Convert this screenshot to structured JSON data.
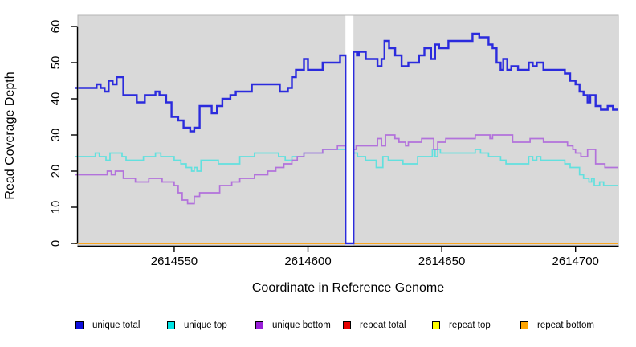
{
  "figure": {
    "xlabel": "Coordinate in Reference Genome",
    "ylabel": "Read Coverage Depth"
  },
  "legend": {
    "position": "bottom",
    "items": [
      {
        "label": "unique total",
        "color": "#0f0fdc"
      },
      {
        "label": "unique top",
        "color": "#00e5e5"
      },
      {
        "label": "unique bottom",
        "color": "#991fd9"
      },
      {
        "label": "repeat total",
        "color": "#e60000"
      },
      {
        "label": "repeat top",
        "color": "#ffff00"
      },
      {
        "label": "repeat bottom",
        "color": "#ffa500"
      }
    ]
  },
  "chart_data": {
    "type": "line",
    "subtype": "step",
    "title": "",
    "xlabel": "Coordinate in Reference Genome",
    "ylabel": "Read Coverage Depth",
    "xlim": [
      2614514,
      2614716
    ],
    "ylim": [
      0,
      60
    ],
    "x_ticks": [
      2614550,
      2614600,
      2614650,
      2614700
    ],
    "y_ticks": [
      0,
      10,
      20,
      30,
      40,
      50,
      60
    ],
    "grid": false,
    "legend_position": "bottom",
    "plot_bg": "#d9d9d9",
    "gap_region": {
      "x_start": 2614614,
      "x_end": 2614617,
      "color": "#ffffff"
    },
    "draw_order": [
      3,
      4,
      5,
      1,
      2,
      0
    ],
    "series": [
      {
        "name": "unique total",
        "color": "#2b2bdd",
        "width": 2.4,
        "points": [
          [
            2614513,
            43
          ],
          [
            2614521,
            44
          ],
          [
            2614522.5,
            43
          ],
          [
            2614524,
            42
          ],
          [
            2614525.5,
            45
          ],
          [
            2614527,
            44
          ],
          [
            2614528.5,
            46
          ],
          [
            2614531,
            41
          ],
          [
            2614536,
            39
          ],
          [
            2614539,
            41
          ],
          [
            2614543,
            42
          ],
          [
            2614544.5,
            41
          ],
          [
            2614547,
            39
          ],
          [
            2614549,
            35
          ],
          [
            2614551.5,
            34
          ],
          [
            2614553.5,
            32
          ],
          [
            2614556,
            31
          ],
          [
            2614557.5,
            32
          ],
          [
            2614559.5,
            38
          ],
          [
            2614564,
            36
          ],
          [
            2614566,
            38
          ],
          [
            2614568,
            40
          ],
          [
            2614571,
            41
          ],
          [
            2614573,
            42
          ],
          [
            2614579,
            44
          ],
          [
            2614589.5,
            42
          ],
          [
            2614592.5,
            43
          ],
          [
            2614594,
            46
          ],
          [
            2614595.5,
            48
          ],
          [
            2614598.5,
            51
          ],
          [
            2614600,
            48
          ],
          [
            2614605.5,
            50
          ],
          [
            2614612,
            52
          ],
          [
            2614614,
            0
          ],
          [
            2614617,
            53
          ],
          [
            2614618.3,
            52
          ],
          [
            2614619,
            53
          ],
          [
            2614621.6,
            51
          ],
          [
            2614626,
            49
          ],
          [
            2614627.5,
            51
          ],
          [
            2614628.6,
            56
          ],
          [
            2614630.3,
            54
          ],
          [
            2614632.6,
            52
          ],
          [
            2614635,
            49
          ],
          [
            2614637.5,
            50
          ],
          [
            2614641.5,
            52
          ],
          [
            2614643.5,
            54
          ],
          [
            2614646,
            51
          ],
          [
            2614647.5,
            55
          ],
          [
            2614649,
            54
          ],
          [
            2614652.5,
            56
          ],
          [
            2614661.5,
            58
          ],
          [
            2614664,
            57
          ],
          [
            2614667.5,
            55
          ],
          [
            2614669,
            54
          ],
          [
            2614670.5,
            50
          ],
          [
            2614672,
            48
          ],
          [
            2614673,
            51
          ],
          [
            2614674.5,
            48
          ],
          [
            2614676,
            49
          ],
          [
            2614678.5,
            48
          ],
          [
            2614682.5,
            50
          ],
          [
            2614684,
            49
          ],
          [
            2614685.5,
            50
          ],
          [
            2614688,
            48
          ],
          [
            2614696,
            47
          ],
          [
            2614698,
            45
          ],
          [
            2614700,
            44
          ],
          [
            2614701.5,
            42
          ],
          [
            2614703,
            41
          ],
          [
            2614704.5,
            39
          ],
          [
            2614705.5,
            41
          ],
          [
            2614707.5,
            38
          ],
          [
            2614709.5,
            37
          ],
          [
            2614712,
            38
          ],
          [
            2614714,
            37
          ]
        ]
      },
      {
        "name": "unique top",
        "color": "#62e0de",
        "width": 1.7,
        "points": [
          [
            2614513,
            24
          ],
          [
            2614520.5,
            25
          ],
          [
            2614522,
            24
          ],
          [
            2614524.5,
            23
          ],
          [
            2614526,
            25
          ],
          [
            2614530.5,
            24
          ],
          [
            2614532,
            23
          ],
          [
            2614538.5,
            24
          ],
          [
            2614543,
            25
          ],
          [
            2614545,
            24
          ],
          [
            2614550,
            23
          ],
          [
            2614552.5,
            22
          ],
          [
            2614554.5,
            21
          ],
          [
            2614556.5,
            20
          ],
          [
            2614557.5,
            21
          ],
          [
            2614558.5,
            20
          ],
          [
            2614560,
            23
          ],
          [
            2614566.5,
            22
          ],
          [
            2614574.5,
            24
          ],
          [
            2614580,
            25
          ],
          [
            2614589,
            24
          ],
          [
            2614591.5,
            23
          ],
          [
            2614594,
            24
          ],
          [
            2614598.5,
            25
          ],
          [
            2614605.5,
            26
          ],
          [
            2614614,
            null
          ],
          [
            2614617,
            25
          ],
          [
            2614618.5,
            24
          ],
          [
            2614621.5,
            23
          ],
          [
            2614625.5,
            21
          ],
          [
            2614628,
            24
          ],
          [
            2614630,
            23
          ],
          [
            2614635.5,
            22
          ],
          [
            2614641,
            24
          ],
          [
            2614646.5,
            26
          ],
          [
            2614647.5,
            24
          ],
          [
            2614648.5,
            26
          ],
          [
            2614649.5,
            25
          ],
          [
            2614662.5,
            26
          ],
          [
            2614664.5,
            25
          ],
          [
            2614667.5,
            24
          ],
          [
            2614672,
            23
          ],
          [
            2614674,
            22
          ],
          [
            2614682.5,
            24
          ],
          [
            2614684,
            23
          ],
          [
            2614685.5,
            24
          ],
          [
            2614687,
            23
          ],
          [
            2614696,
            22
          ],
          [
            2614698,
            21
          ],
          [
            2614701.5,
            19
          ],
          [
            2614703,
            18
          ],
          [
            2614705,
            17
          ],
          [
            2614706,
            18
          ],
          [
            2614707,
            16
          ],
          [
            2614709,
            17
          ],
          [
            2614710.5,
            16
          ]
        ]
      },
      {
        "name": "unique bottom",
        "color": "#b272db",
        "width": 1.7,
        "points": [
          [
            2614513,
            19
          ],
          [
            2614525,
            20
          ],
          [
            2614526.5,
            19
          ],
          [
            2614528,
            20
          ],
          [
            2614531,
            18
          ],
          [
            2614535.5,
            17
          ],
          [
            2614540.5,
            18
          ],
          [
            2614545.5,
            17
          ],
          [
            2614550,
            16
          ],
          [
            2614551.5,
            14
          ],
          [
            2614553,
            12
          ],
          [
            2614555,
            11
          ],
          [
            2614557.5,
            13
          ],
          [
            2614559.5,
            14
          ],
          [
            2614567,
            16
          ],
          [
            2614571.5,
            17
          ],
          [
            2614574.5,
            18
          ],
          [
            2614580,
            19
          ],
          [
            2614585,
            20
          ],
          [
            2614588,
            21
          ],
          [
            2614591,
            22
          ],
          [
            2614594,
            23
          ],
          [
            2614596,
            24
          ],
          [
            2614598.5,
            25
          ],
          [
            2614605.5,
            26
          ],
          [
            2614611,
            27
          ],
          [
            2614614,
            null
          ],
          [
            2614617,
            26
          ],
          [
            2614618,
            27
          ],
          [
            2614626,
            29
          ],
          [
            2614627.5,
            27
          ],
          [
            2614629,
            30
          ],
          [
            2614632.5,
            29
          ],
          [
            2614634,
            28
          ],
          [
            2614636.5,
            27
          ],
          [
            2614637.5,
            28
          ],
          [
            2614642.5,
            29
          ],
          [
            2614647,
            26
          ],
          [
            2614648.5,
            28
          ],
          [
            2614651.5,
            29
          ],
          [
            2614662.5,
            30
          ],
          [
            2614668,
            29
          ],
          [
            2614669,
            30
          ],
          [
            2614676.5,
            28
          ],
          [
            2614683,
            29
          ],
          [
            2614688,
            28
          ],
          [
            2614697,
            27
          ],
          [
            2614699,
            26
          ],
          [
            2614700,
            25
          ],
          [
            2614702,
            24
          ],
          [
            2614704.5,
            26
          ],
          [
            2614707.5,
            22
          ],
          [
            2614711,
            21
          ]
        ]
      },
      {
        "name": "repeat total",
        "color": "#e60000",
        "width": 1.6,
        "points": [
          [
            2614513,
            0
          ]
        ]
      },
      {
        "name": "repeat top",
        "color": "#ffff00",
        "width": 1.6,
        "points": [
          [
            2614513,
            0
          ]
        ]
      },
      {
        "name": "repeat bottom",
        "color": "#ffa019",
        "width": 1.6,
        "points": [
          [
            2614513,
            0
          ]
        ]
      }
    ]
  }
}
